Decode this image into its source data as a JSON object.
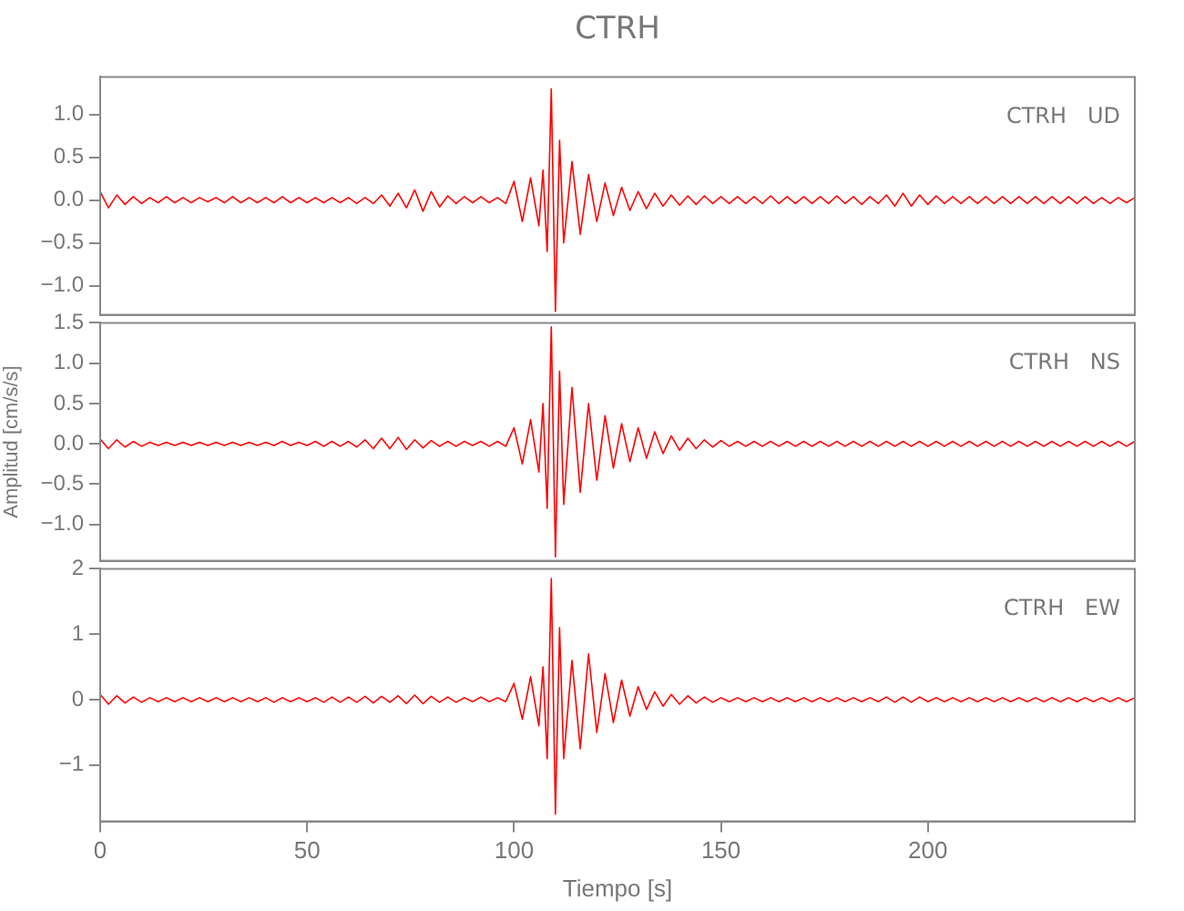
{
  "chart_data": [
    {
      "type": "line",
      "title": "CTRH",
      "annotations": [
        "CTRH   UD"
      ],
      "tick_labels": "y",
      "xlim": [
        0,
        250
      ],
      "xticks": [
        0,
        50,
        100,
        150,
        200
      ],
      "ylim": [
        -1.34,
        1.44
      ],
      "yticks": [
        {
          "value": -1,
          "label": "−1.0"
        },
        {
          "value": -0.5,
          "label": "−0.5"
        },
        {
          "value": 0,
          "label": "0.0"
        },
        {
          "value": 0.5,
          "label": "0.5"
        },
        {
          "value": 1,
          "label": "1.0"
        }
      ],
      "x": [
        0,
        2,
        4,
        6,
        8,
        10,
        12,
        14,
        16,
        18,
        20,
        22,
        24,
        26,
        28,
        30,
        32,
        34,
        36,
        38,
        40,
        42,
        44,
        46,
        48,
        50,
        52,
        54,
        56,
        58,
        60,
        62,
        64,
        66,
        68,
        70,
        72,
        74,
        76,
        78,
        80,
        82,
        84,
        86,
        88,
        90,
        92,
        94,
        96,
        98,
        100,
        102,
        104,
        106,
        107,
        108,
        109,
        110,
        111,
        112,
        114,
        116,
        118,
        120,
        122,
        124,
        126,
        128,
        130,
        132,
        134,
        136,
        138,
        140,
        142,
        144,
        146,
        148,
        150,
        152,
        154,
        156,
        158,
        160,
        162,
        164,
        166,
        168,
        170,
        172,
        174,
        176,
        178,
        180,
        182,
        184,
        186,
        188,
        190,
        192,
        194,
        196,
        198,
        200,
        202,
        204,
        206,
        208,
        210,
        212,
        214,
        216,
        218,
        220,
        222,
        224,
        226,
        228,
        230,
        232,
        234,
        236,
        238,
        240,
        242,
        244,
        246,
        248,
        250
      ],
      "series": [
        {
          "color": "#ff0000",
          "values": [
            0.1,
            -0.09,
            0.06,
            -0.05,
            0.04,
            -0.04,
            0.03,
            -0.03,
            0.04,
            -0.03,
            0.03,
            -0.03,
            0.03,
            -0.02,
            0.03,
            -0.03,
            0.04,
            -0.03,
            0.03,
            -0.03,
            0.03,
            -0.03,
            0.04,
            -0.03,
            0.03,
            -0.03,
            0.03,
            -0.03,
            0.03,
            -0.03,
            0.03,
            -0.04,
            0.03,
            -0.04,
            0.06,
            -0.07,
            0.08,
            -0.09,
            0.12,
            -0.13,
            0.1,
            -0.08,
            0.05,
            -0.04,
            0.04,
            -0.03,
            0.04,
            -0.03,
            0.03,
            -0.04,
            0.22,
            -0.25,
            0.26,
            -0.3,
            0.35,
            -0.6,
            1.3,
            -1.3,
            0.7,
            -0.5,
            0.45,
            -0.4,
            0.3,
            -0.25,
            0.2,
            -0.18,
            0.15,
            -0.12,
            0.1,
            -0.1,
            0.08,
            -0.07,
            0.06,
            -0.06,
            0.05,
            -0.05,
            0.05,
            -0.04,
            0.04,
            -0.04,
            0.04,
            -0.04,
            0.04,
            -0.04,
            0.05,
            -0.04,
            0.04,
            -0.04,
            0.04,
            -0.04,
            0.04,
            -0.04,
            0.05,
            -0.04,
            0.04,
            -0.05,
            0.04,
            -0.04,
            0.06,
            -0.07,
            0.08,
            -0.07,
            0.06,
            -0.05,
            0.05,
            -0.04,
            0.04,
            -0.04,
            0.04,
            -0.04,
            0.04,
            -0.04,
            0.04,
            -0.04,
            0.04,
            -0.04,
            0.04,
            -0.04,
            0.04,
            -0.04,
            0.04,
            -0.04,
            0.04,
            -0.04,
            0.03,
            -0.04,
            0.03,
            -0.03,
            0.03
          ]
        }
      ]
    },
    {
      "type": "line",
      "ylabel": "Amplitud [cm/s/s]",
      "annotations": [
        "CTRH   NS"
      ],
      "tick_labels": "y",
      "xlim": [
        0,
        250
      ],
      "xticks": [
        0,
        50,
        100,
        150,
        200
      ],
      "ylim": [
        -1.45,
        1.5
      ],
      "yticks": [
        {
          "value": -1,
          "label": "−1.0"
        },
        {
          "value": -0.5,
          "label": "−0.5"
        },
        {
          "value": 0,
          "label": "0.0"
        },
        {
          "value": 0.5,
          "label": "0.5"
        },
        {
          "value": 1,
          "label": "1.0"
        },
        {
          "value": 1.5,
          "label": "1.5"
        }
      ],
      "x": [
        0,
        2,
        4,
        6,
        8,
        10,
        12,
        14,
        16,
        18,
        20,
        22,
        24,
        26,
        28,
        30,
        32,
        34,
        36,
        38,
        40,
        42,
        44,
        46,
        48,
        50,
        52,
        54,
        56,
        58,
        60,
        62,
        64,
        66,
        68,
        70,
        72,
        74,
        76,
        78,
        80,
        82,
        84,
        86,
        88,
        90,
        92,
        94,
        96,
        98,
        100,
        102,
        104,
        106,
        107,
        108,
        109,
        110,
        111,
        112,
        114,
        116,
        118,
        120,
        122,
        124,
        126,
        128,
        130,
        132,
        134,
        136,
        138,
        140,
        142,
        144,
        146,
        148,
        150,
        152,
        154,
        156,
        158,
        160,
        162,
        164,
        166,
        168,
        170,
        172,
        174,
        176,
        178,
        180,
        182,
        184,
        186,
        188,
        190,
        192,
        194,
        196,
        198,
        200,
        202,
        204,
        206,
        208,
        210,
        212,
        214,
        216,
        218,
        220,
        222,
        224,
        226,
        228,
        230,
        232,
        234,
        236,
        238,
        240,
        242,
        244,
        246,
        248,
        250
      ],
      "series": [
        {
          "color": "#ff0000",
          "values": [
            0.06,
            -0.06,
            0.05,
            -0.04,
            0.03,
            -0.03,
            0.02,
            -0.02,
            0.02,
            -0.02,
            0.02,
            -0.02,
            0.02,
            -0.02,
            0.02,
            -0.02,
            0.02,
            -0.02,
            0.02,
            -0.02,
            0.02,
            -0.02,
            0.03,
            -0.02,
            0.02,
            -0.02,
            0.03,
            -0.03,
            0.03,
            -0.03,
            0.03,
            -0.04,
            0.05,
            -0.06,
            0.07,
            -0.06,
            0.08,
            -0.07,
            0.05,
            -0.05,
            0.04,
            -0.03,
            0.03,
            -0.03,
            0.03,
            -0.02,
            0.03,
            -0.03,
            0.03,
            -0.03,
            0.2,
            -0.25,
            0.3,
            -0.35,
            0.5,
            -0.8,
            1.45,
            -1.4,
            0.9,
            -0.75,
            0.7,
            -0.6,
            0.5,
            -0.45,
            0.35,
            -0.3,
            0.25,
            -0.22,
            0.2,
            -0.18,
            0.15,
            -0.12,
            0.1,
            -0.08,
            0.07,
            -0.06,
            0.05,
            -0.04,
            0.04,
            -0.03,
            0.03,
            -0.03,
            0.03,
            -0.03,
            0.03,
            -0.03,
            0.03,
            -0.03,
            0.03,
            -0.03,
            0.03,
            -0.03,
            0.03,
            -0.03,
            0.03,
            -0.03,
            0.03,
            -0.03,
            0.03,
            -0.03,
            0.03,
            -0.03,
            0.03,
            -0.03,
            0.03,
            -0.03,
            0.03,
            -0.03,
            0.03,
            -0.03,
            0.03,
            -0.03,
            0.03,
            -0.03,
            0.03,
            -0.03,
            0.03,
            -0.03,
            0.03,
            -0.03,
            0.03,
            -0.03,
            0.03,
            -0.03,
            0.03,
            -0.03,
            0.03,
            -0.03,
            0.03
          ]
        }
      ]
    },
    {
      "type": "line",
      "xlabel": "Tiempo [s]",
      "annotations": [
        "CTRH   EW"
      ],
      "xlim": [
        0,
        250
      ],
      "xticks": [
        0,
        50,
        100,
        150,
        200
      ],
      "ylim": [
        -1.86,
        2
      ],
      "yticks": [
        {
          "value": -1,
          "label": "−1"
        },
        0,
        1,
        2
      ],
      "x": [
        0,
        2,
        4,
        6,
        8,
        10,
        12,
        14,
        16,
        18,
        20,
        22,
        24,
        26,
        28,
        30,
        32,
        34,
        36,
        38,
        40,
        42,
        44,
        46,
        48,
        50,
        52,
        54,
        56,
        58,
        60,
        62,
        64,
        66,
        68,
        70,
        72,
        74,
        76,
        78,
        80,
        82,
        84,
        86,
        88,
        90,
        92,
        94,
        96,
        98,
        100,
        102,
        104,
        106,
        107,
        108,
        109,
        110,
        111,
        112,
        114,
        116,
        118,
        120,
        122,
        124,
        126,
        128,
        130,
        132,
        134,
        136,
        138,
        140,
        142,
        144,
        146,
        148,
        150,
        152,
        154,
        156,
        158,
        160,
        162,
        164,
        166,
        168,
        170,
        172,
        174,
        176,
        178,
        180,
        182,
        184,
        186,
        188,
        190,
        192,
        194,
        196,
        198,
        200,
        202,
        204,
        206,
        208,
        210,
        212,
        214,
        216,
        218,
        220,
        222,
        224,
        226,
        228,
        230,
        232,
        234,
        236,
        238,
        240,
        242,
        244,
        246,
        248,
        250
      ],
      "series": [
        {
          "color": "#ff0000",
          "values": [
            0.08,
            -0.07,
            0.06,
            -0.05,
            0.04,
            -0.04,
            0.03,
            -0.03,
            0.03,
            -0.03,
            0.03,
            -0.03,
            0.03,
            -0.03,
            0.03,
            -0.03,
            0.03,
            -0.03,
            0.03,
            -0.03,
            0.03,
            -0.04,
            0.03,
            -0.03,
            0.03,
            -0.03,
            0.03,
            -0.04,
            0.04,
            -0.04,
            0.04,
            -0.04,
            0.05,
            -0.05,
            0.05,
            -0.04,
            0.06,
            -0.06,
            0.07,
            -0.06,
            0.05,
            -0.04,
            0.04,
            -0.04,
            0.03,
            -0.03,
            0.04,
            -0.03,
            0.03,
            -0.03,
            0.25,
            -0.3,
            0.35,
            -0.4,
            0.5,
            -0.9,
            1.85,
            -1.75,
            1.1,
            -0.9,
            0.6,
            -0.75,
            0.7,
            -0.5,
            0.4,
            -0.35,
            0.3,
            -0.25,
            0.2,
            -0.15,
            0.12,
            -0.1,
            0.08,
            -0.07,
            0.06,
            -0.05,
            0.04,
            -0.04,
            0.03,
            -0.03,
            0.03,
            -0.03,
            0.03,
            -0.03,
            0.03,
            -0.03,
            0.03,
            -0.03,
            0.03,
            -0.03,
            0.03,
            -0.03,
            0.03,
            -0.03,
            0.03,
            -0.03,
            0.03,
            -0.03,
            0.04,
            -0.04,
            0.04,
            -0.04,
            0.04,
            -0.03,
            0.03,
            -0.03,
            0.03,
            -0.03,
            0.03,
            -0.03,
            0.03,
            -0.03,
            0.03,
            -0.03,
            0.03,
            -0.03,
            0.03,
            -0.03,
            0.03,
            -0.03,
            0.03,
            -0.03,
            0.03,
            -0.03,
            0.03,
            -0.03,
            0.03,
            -0.03,
            0.03
          ]
        }
      ]
    }
  ]
}
